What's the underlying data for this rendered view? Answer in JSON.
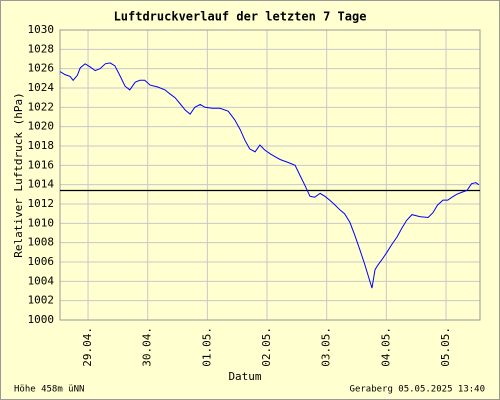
{
  "chart_data": {
    "type": "line",
    "title": "Luftdruckverlauf der letzten 7 Tage",
    "xlabel": "Datum",
    "ylabel": "Relativer Luftdruck (hPa)",
    "footer_left": "Höhe 458m üNN",
    "footer_right": "Geraberg 05.05.2025 13:40",
    "xlim": [
      -0.47,
      6.57
    ],
    "xticks": [
      {
        "value": 0,
        "label": "29.04."
      },
      {
        "value": 1,
        "label": "30.04."
      },
      {
        "value": 2,
        "label": "01.05."
      },
      {
        "value": 3,
        "label": "02.05."
      },
      {
        "value": 4,
        "label": "03.05."
      },
      {
        "value": 5,
        "label": "04.05."
      },
      {
        "value": 6,
        "label": "05.05."
      }
    ],
    "ylim": [
      1000,
      1030
    ],
    "yticks": [
      1000,
      1002,
      1004,
      1006,
      1008,
      1010,
      1012,
      1014,
      1016,
      1018,
      1020,
      1022,
      1024,
      1026,
      1028,
      1030
    ],
    "grid": true,
    "reference_line": 1013.4,
    "reference_color": "#000000",
    "series": [
      {
        "color": "#0000ff",
        "x": [
          -0.47,
          -0.39,
          -0.3,
          -0.25,
          -0.18,
          -0.13,
          -0.05,
          0.03,
          0.12,
          0.2,
          0.29,
          0.37,
          0.45,
          0.54,
          0.62,
          0.7,
          0.79,
          0.87,
          0.95,
          1.04,
          1.17,
          1.29,
          1.37,
          1.46,
          1.54,
          1.63,
          1.71,
          1.79,
          1.88,
          1.96,
          2.08,
          2.21,
          2.35,
          2.46,
          2.55,
          2.63,
          2.71,
          2.8,
          2.88,
          2.96,
          3.05,
          3.13,
          3.22,
          3.35,
          3.47,
          3.55,
          3.63,
          3.72,
          3.8,
          3.89,
          3.97,
          4.05,
          4.14,
          4.22,
          4.3,
          4.39,
          4.47,
          4.56,
          4.64,
          4.72,
          4.76,
          4.81,
          4.86,
          4.92,
          5.01,
          5.09,
          5.18,
          5.26,
          5.34,
          5.43,
          5.56,
          5.7,
          5.78,
          5.86,
          5.95,
          6.03,
          6.1,
          6.18,
          6.26,
          6.35,
          6.43,
          6.5,
          6.55
        ],
        "values": [
          1025.7,
          1025.4,
          1025.2,
          1024.8,
          1025.3,
          1026.1,
          1026.5,
          1026.2,
          1025.8,
          1026.0,
          1026.5,
          1026.6,
          1026.3,
          1025.2,
          1024.2,
          1023.8,
          1024.6,
          1024.8,
          1024.8,
          1024.3,
          1024.1,
          1023.8,
          1023.4,
          1023.0,
          1022.4,
          1021.7,
          1021.3,
          1022.0,
          1022.3,
          1022.0,
          1021.9,
          1021.9,
          1021.6,
          1020.7,
          1019.7,
          1018.6,
          1017.7,
          1017.4,
          1018.1,
          1017.6,
          1017.2,
          1016.9,
          1016.6,
          1016.3,
          1016.0,
          1015.0,
          1014.0,
          1012.8,
          1012.7,
          1013.1,
          1012.8,
          1012.4,
          1011.9,
          1011.4,
          1011.0,
          1010.1,
          1008.8,
          1007.2,
          1005.7,
          1004.1,
          1003.3,
          1005.2,
          1005.7,
          1006.2,
          1007.0,
          1007.8,
          1008.6,
          1009.5,
          1010.3,
          1010.9,
          1010.7,
          1010.6,
          1011.1,
          1011.9,
          1012.4,
          1012.4,
          1012.7,
          1013.0,
          1013.2,
          1013.4,
          1014.1,
          1014.2,
          1014.0
        ]
      }
    ]
  }
}
